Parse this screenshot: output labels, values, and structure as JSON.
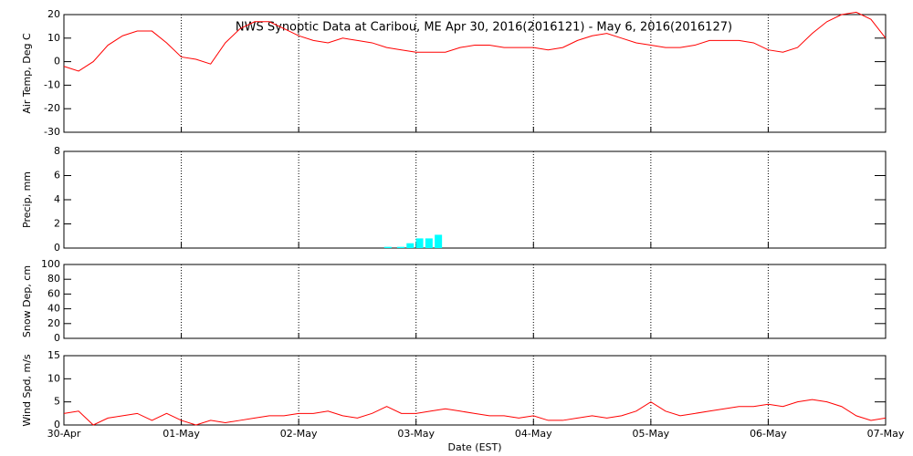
{
  "chart_data": [
    {
      "type": "line",
      "title": "NWS Synoptic Data at Caribou, ME   Apr 30, 2016(2016121) - May  6, 2016(2016127)",
      "ylabel": "Air Temp, Deg C",
      "x": [
        0,
        0.125,
        0.25,
        0.375,
        0.5,
        0.625,
        0.75,
        0.875,
        1,
        1.125,
        1.25,
        1.375,
        1.5,
        1.625,
        1.75,
        1.875,
        2,
        2.125,
        2.25,
        2.375,
        2.5,
        2.625,
        2.75,
        2.875,
        3,
        3.125,
        3.25,
        3.375,
        3.5,
        3.625,
        3.75,
        3.875,
        4,
        4.125,
        4.25,
        4.375,
        4.5,
        4.625,
        4.75,
        4.875,
        5,
        5.125,
        5.25,
        5.375,
        5.5,
        5.625,
        5.75,
        5.875,
        6,
        6.125,
        6.25,
        6.375,
        6.5,
        6.625,
        6.75,
        6.875,
        7
      ],
      "series": [
        {
          "color": "#ff0000",
          "values": [
            -2,
            -4,
            0,
            7,
            11,
            13,
            13,
            8,
            2,
            1,
            -1,
            8,
            14,
            17,
            17,
            14,
            11,
            9,
            8,
            10,
            9,
            8,
            6,
            5,
            4,
            4,
            4,
            6,
            7,
            7,
            6,
            6,
            6,
            5,
            6,
            9,
            11,
            12,
            10,
            8,
            7,
            6,
            6,
            7,
            9,
            9,
            9,
            8,
            5,
            4,
            6,
            12,
            17,
            20,
            21,
            18,
            10
          ]
        }
      ],
      "xlim": [
        0,
        7
      ],
      "xticks": [
        0,
        1,
        2,
        3,
        4,
        5,
        6,
        7
      ],
      "ylim": [
        -30,
        20
      ],
      "yticks": [
        -30,
        -20,
        -10,
        0,
        10,
        20
      ],
      "grid": true
    },
    {
      "type": "bar",
      "ylabel": "Precip, mm",
      "x": [
        2.76,
        2.87,
        2.95,
        3.03,
        3.11,
        3.19
      ],
      "series": [
        {
          "color": "#00ffff",
          "values": [
            0.1,
            0.1,
            0.4,
            0.8,
            0.8,
            1.1
          ]
        }
      ],
      "xlim": [
        0,
        7
      ],
      "xticks": [
        0,
        1,
        2,
        3,
        4,
        5,
        6,
        7
      ],
      "ylim": [
        0,
        8
      ],
      "yticks": [
        0,
        2,
        4,
        6,
        8
      ],
      "grid": true
    },
    {
      "type": "line",
      "ylabel": "Snow Dep, cm",
      "xlim": [
        0,
        7
      ],
      "xticks": [
        0,
        1,
        2,
        3,
        4,
        5,
        6,
        7
      ],
      "ylim": [
        0,
        100
      ],
      "yticks": [
        0,
        20,
        40,
        60,
        80,
        100
      ],
      "grid": true
    },
    {
      "type": "line",
      "ylabel": "Wind Spd, m/s",
      "xlabel": "Date (EST)",
      "x": [
        0,
        0.125,
        0.25,
        0.375,
        0.5,
        0.625,
        0.75,
        0.875,
        1,
        1.125,
        1.25,
        1.375,
        1.5,
        1.625,
        1.75,
        1.875,
        2,
        2.125,
        2.25,
        2.375,
        2.5,
        2.625,
        2.75,
        2.875,
        3,
        3.125,
        3.25,
        3.375,
        3.5,
        3.625,
        3.75,
        3.875,
        4,
        4.125,
        4.25,
        4.375,
        4.5,
        4.625,
        4.75,
        4.875,
        5,
        5.125,
        5.25,
        5.375,
        5.5,
        5.625,
        5.75,
        5.875,
        6,
        6.125,
        6.25,
        6.375,
        6.5,
        6.625,
        6.75,
        6.875,
        7
      ],
      "series": [
        {
          "color": "#ff0000",
          "values": [
            2.5,
            3,
            0,
            1.5,
            2,
            2.5,
            1,
            2.5,
            1,
            0,
            1,
            0.5,
            1,
            1.5,
            2,
            2,
            2.5,
            2.5,
            3,
            2,
            1.5,
            2.5,
            4,
            2.5,
            2.5,
            3,
            3.5,
            3,
            2.5,
            2,
            2,
            1.5,
            2,
            1,
            1,
            1.5,
            2,
            1.5,
            2,
            3,
            5,
            3,
            2,
            2.5,
            3,
            3.5,
            4,
            4,
            4.5,
            4,
            5,
            5.5,
            5,
            4,
            2,
            1,
            1.5
          ]
        }
      ],
      "xlim": [
        0,
        7
      ],
      "xticks": [
        {
          "value": 0,
          "label": "30-Apr"
        },
        {
          "value": 1,
          "label": "01-May"
        },
        {
          "value": 2,
          "label": "02-May"
        },
        {
          "value": 3,
          "label": "03-May"
        },
        {
          "value": 4,
          "label": "04-May"
        },
        {
          "value": 5,
          "label": "05-May"
        },
        {
          "value": 6,
          "label": "06-May"
        },
        {
          "value": 7,
          "label": "07-May"
        }
      ],
      "ylim": [
        0,
        15
      ],
      "yticks": [
        0,
        5,
        10,
        15
      ],
      "grid": true
    }
  ]
}
